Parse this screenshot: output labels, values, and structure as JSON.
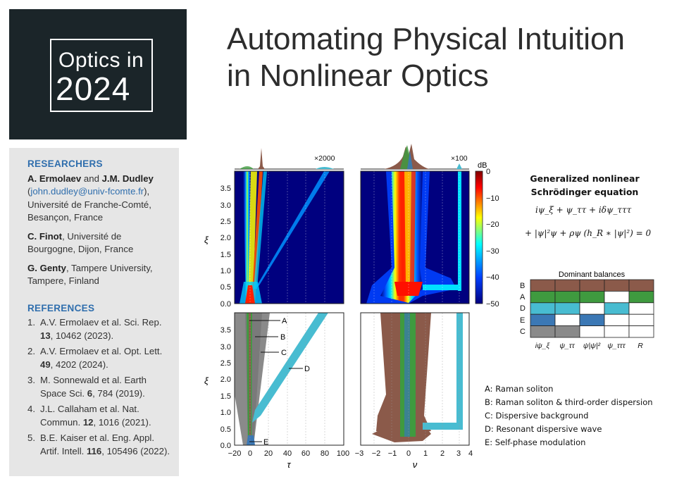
{
  "logo": {
    "line1": "Optics in",
    "line2": "2024"
  },
  "title": {
    "line1": "Automating Physical Intuition",
    "line2": "in Nonlinear Optics"
  },
  "researchers": {
    "heading": "RESEARCHERS",
    "items": [
      {
        "name1": "A. Ermolaev",
        "and": " and ",
        "name2": "J.M. Dudley",
        "email": "john.dudley@univ-fcomte.fr",
        "affil": "Université de Franche-Comté, Besançon, France"
      },
      {
        "name": "C. Finot",
        "affil": ", Université de Bourgogne, Dijon, France"
      },
      {
        "name": "G. Genty",
        "affil": ", Tampere University, Tampere, Finland"
      }
    ]
  },
  "references": {
    "heading": "REFERENCES",
    "items": [
      {
        "num": "1.",
        "pre": "A.V. Ermolaev et al. Sci. Rep. ",
        "vol": "13",
        "post": ", 10462 (2023)."
      },
      {
        "num": "2.",
        "pre": "A.V. Ermolaev et al. Opt. Lett. ",
        "vol": "49",
        "post": ", 4202 (2024)."
      },
      {
        "num": "3.",
        "pre": "M. Sonnewald et al. Earth Space Sci. ",
        "vol": "6",
        "post": ", 784 (2019)."
      },
      {
        "num": "4.",
        "pre": "J.L. Callaham et al. Nat. Commun. ",
        "vol": "12",
        "post": ", 1016 (2021)."
      },
      {
        "num": "5.",
        "pre": "B.E. Kaiser et al. Eng. Appl. Artif. Intell. ",
        "vol": "116",
        "post": ", 105496 (2022)."
      }
    ]
  },
  "figure": {
    "time_scale": "×2000",
    "freq_scale": "×100",
    "xlabel_time": "τ",
    "xlabel_freq": "ν",
    "ylabel": "ξ",
    "y_ticks": [
      "0.0",
      "0.5",
      "1.0",
      "1.5",
      "2.0",
      "2.5",
      "3.0",
      "3.5"
    ],
    "x_ticks_time": [
      "−20",
      "0",
      "20",
      "40",
      "60",
      "80",
      "100"
    ],
    "x_ticks_freq": [
      "−3",
      "−2",
      "−1",
      "0",
      "1",
      "2",
      "3",
      "4"
    ],
    "colorbar_unit": "dB",
    "colorbar_ticks": [
      "0",
      "−10",
      "−20",
      "−30",
      "−40",
      "−50"
    ],
    "region_labels": [
      "A",
      "B",
      "C",
      "D",
      "E"
    ],
    "equation_title": "Generalized nonlinear Schrödinger equation",
    "equation_line1": "iψ_ξ + ψ_ττ + iδψ_τττ",
    "equation_line2": "+ |ψ|²ψ + ρψ (h_R ∗ |ψ|²) = 0",
    "balance_title": "Dominant balances",
    "balance_rows": [
      "B",
      "A",
      "D",
      "E",
      "C"
    ],
    "balance_cols": [
      "iψ_ξ",
      "ψ_ττ",
      "ψ|ψ|²",
      "ψ_τττ",
      "R"
    ],
    "balance_colors": {
      "B": "#8b5a4a",
      "A": "#3f9a3f",
      "D": "#48bcd1",
      "E": "#3b78b5",
      "C": "#8a8a8a",
      "off": "#ffffff"
    },
    "balance_matrix": [
      [
        1,
        1,
        1,
        1,
        1
      ],
      [
        1,
        1,
        1,
        0,
        1
      ],
      [
        1,
        1,
        0,
        1,
        0
      ],
      [
        1,
        0,
        1,
        0,
        0
      ],
      [
        1,
        1,
        0,
        0,
        0
      ]
    ],
    "legend": [
      "A: Raman soliton",
      "B: Raman soliton & third-order dispersion",
      "C: Dispersive background",
      "D: Resonant dispersive wave",
      "E: Self-phase modulation"
    ]
  }
}
